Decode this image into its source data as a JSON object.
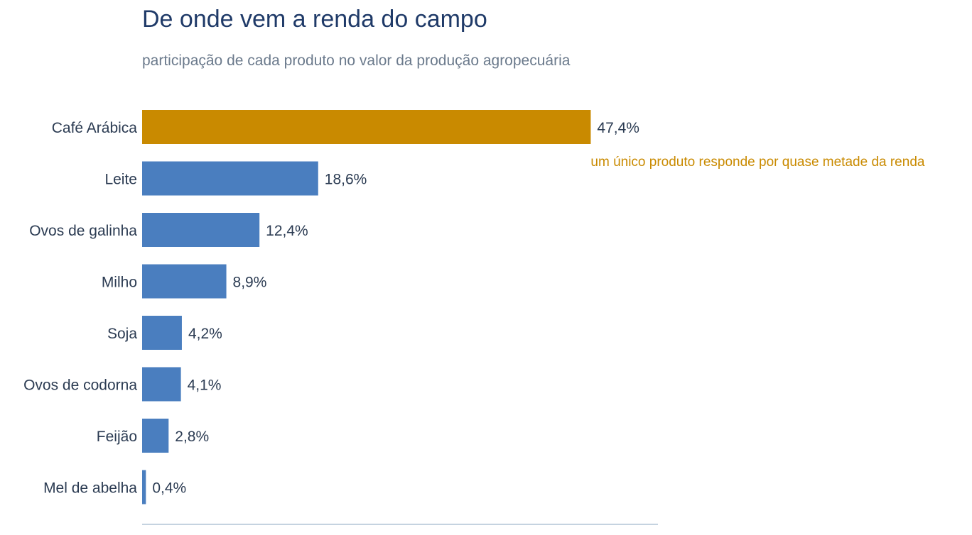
{
  "colors": {
    "highlight": "#c98a00",
    "bar": "#4a7ebf",
    "axis": "#c5d3e0",
    "title": "#1f3a68",
    "subtitle": "#6b7a8c",
    "text": "#2b3b52"
  },
  "chart_data": {
    "type": "bar",
    "orientation": "horizontal",
    "title": "De onde vem a renda do campo",
    "subtitle": "participação de cada produto no valor da produção agropecuária",
    "categories": [
      "Café Arábica",
      "Leite",
      "Ovos de galinha",
      "Milho",
      "Soja",
      "Ovos de codorna",
      "Feijão",
      "Mel de abelha"
    ],
    "values": [
      47.4,
      18.6,
      12.4,
      8.9,
      4.2,
      4.1,
      2.8,
      0.4
    ],
    "value_labels": [
      "47,4%",
      "18,6%",
      "12,4%",
      "8,9%",
      "4,2%",
      "4,1%",
      "2,8%",
      "0,4%"
    ],
    "unit": "%",
    "xlim": [
      0,
      54.5
    ],
    "highlight_index": 0,
    "annotation": {
      "text": "um único produto responde por quase metade da renda",
      "category": "Café Arábica"
    },
    "grid": false,
    "legend": "none"
  }
}
